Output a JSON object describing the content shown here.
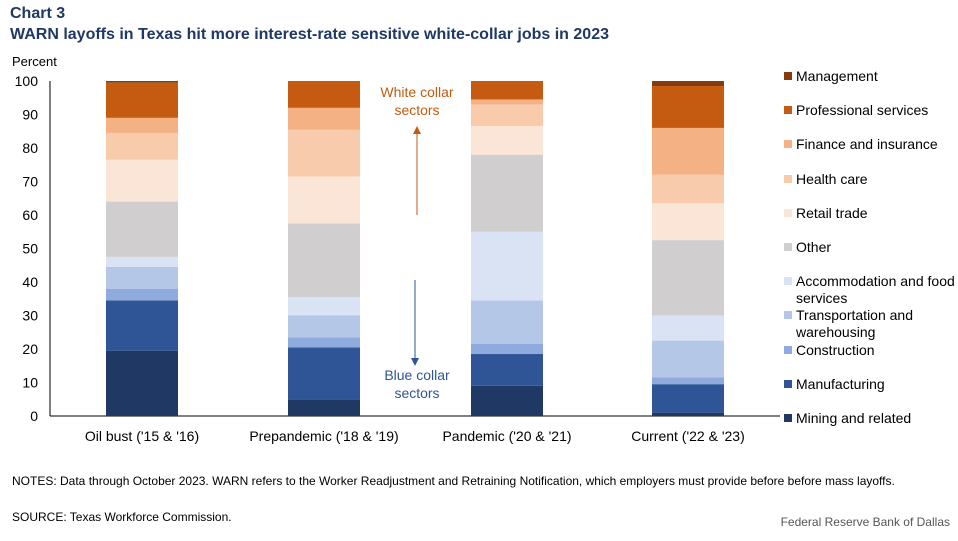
{
  "header": {
    "label": "Chart 3",
    "title": "WARN layoffs in Texas hit more interest-rate sensitive white-collar jobs in 2023"
  },
  "footer": {
    "notes": "NOTES: Data through October 2023. WARN refers to the Worker Readjustment and Retraining Notification, which employers must provide before before mass layoffs.",
    "source": "SOURCE: Texas Workforce Commission.",
    "credit": "Federal Reserve Bank of Dallas"
  },
  "annotations": {
    "white_collar": "White collar sectors",
    "blue_collar": "Blue collar sectors",
    "white_color": "#c55a11",
    "blue_color": "#2f5597"
  },
  "chart_data": {
    "type": "bar",
    "stacked": true,
    "ylabel": "Percent",
    "ylim": [
      0,
      100
    ],
    "yticks": [
      0,
      10,
      20,
      30,
      40,
      50,
      60,
      70,
      80,
      90,
      100
    ],
    "legend_position": "right",
    "categories": [
      "Oil bust ('15 & '16)",
      "Prepandemic ('18 & '19)",
      "Pandemic ('20 & '21)",
      "Current ('22 & '23)"
    ],
    "series": [
      {
        "name": "Mining and related",
        "color": "#1f3864",
        "values": [
          19.5,
          5.0,
          9.0,
          1.0
        ]
      },
      {
        "name": "Manufacturing",
        "color": "#2f5597",
        "values": [
          15.0,
          15.5,
          9.5,
          8.5
        ]
      },
      {
        "name": "Construction",
        "color": "#8faadc",
        "values": [
          3.5,
          3.0,
          3.0,
          2.0
        ]
      },
      {
        "name": "Transportation and warehousing",
        "color": "#b4c7e7",
        "values": [
          6.5,
          6.5,
          13.0,
          11.0
        ]
      },
      {
        "name": "Accommodation and food services",
        "color": "#dae3f3",
        "values": [
          3.0,
          5.5,
          20.5,
          7.5
        ]
      },
      {
        "name": "Other",
        "color": "#d0cece",
        "values": [
          16.5,
          22.0,
          23.0,
          22.5
        ]
      },
      {
        "name": "Retail trade",
        "color": "#fbe5d6",
        "values": [
          12.5,
          14.0,
          8.5,
          11.0
        ]
      },
      {
        "name": "Health care",
        "color": "#f8cbad",
        "values": [
          8.0,
          14.0,
          6.5,
          8.5
        ]
      },
      {
        "name": "Finance and insurance",
        "color": "#f4b183",
        "values": [
          4.5,
          6.5,
          1.5,
          14.0
        ]
      },
      {
        "name": "Professional services",
        "color": "#c55a11",
        "values": [
          10.5,
          8.0,
          5.5,
          12.5
        ]
      },
      {
        "name": "Management",
        "color": "#843c0c",
        "values": [
          0.5,
          0.0,
          0.0,
          1.5
        ]
      }
    ]
  }
}
